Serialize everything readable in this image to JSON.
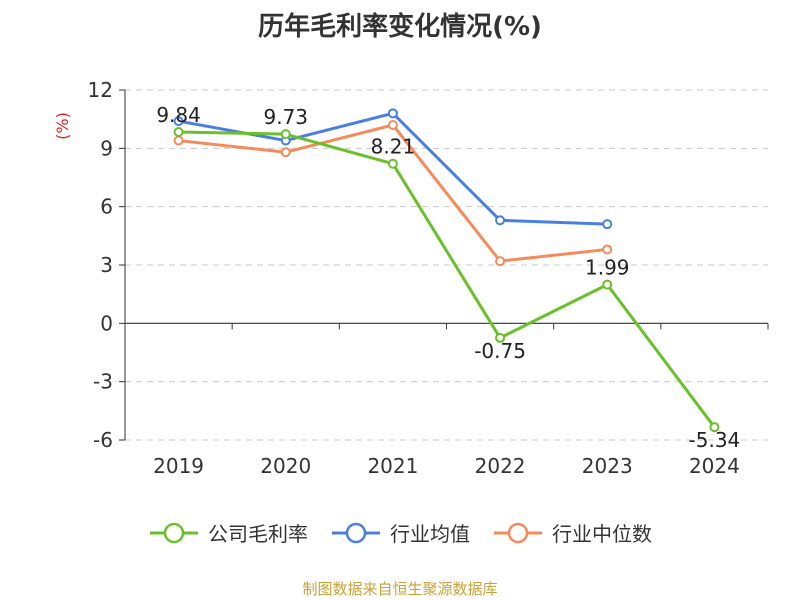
{
  "title": "历年毛利率变化情况(%)",
  "y_unit": "(%)",
  "source_note": "制图数据来自恒生聚源数据库",
  "chart_data": {
    "type": "line",
    "title": "历年毛利率变化情况(%)",
    "ylabel": "(%)",
    "xlabel": "",
    "categories": [
      "2019",
      "2020",
      "2021",
      "2022",
      "2023",
      "2024"
    ],
    "ylim": [
      -6,
      12
    ],
    "yticks": [
      12,
      9,
      6,
      3,
      0,
      -3,
      -6
    ],
    "ytick_labels": [
      "12",
      "9",
      "6",
      "3",
      "0",
      "-3",
      "-6"
    ],
    "grid": true,
    "legend_position": "bottom",
    "series": [
      {
        "name": "公司毛利率",
        "color": "#6ac02a",
        "values": [
          9.84,
          9.73,
          8.21,
          -0.75,
          1.99,
          -5.34
        ],
        "labels": [
          "9.84",
          "9.73",
          "8.21",
          "-0.75",
          "1.99",
          "-5.34"
        ]
      },
      {
        "name": "行业均值",
        "color": "#4a7fe0",
        "values": [
          10.4,
          9.4,
          10.8,
          5.3,
          5.1,
          null
        ]
      },
      {
        "name": "行业中位数",
        "color": "#f58a5a",
        "values": [
          9.4,
          8.8,
          10.2,
          3.2,
          3.8,
          null
        ]
      }
    ]
  }
}
